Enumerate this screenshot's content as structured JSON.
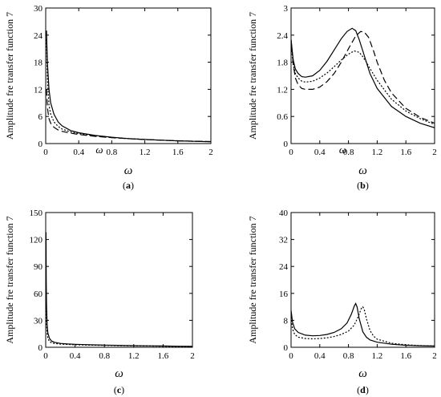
{
  "chart_data": [
    {
      "panel": "a",
      "panel_label": "(a)",
      "type": "line",
      "xlabel": "ω",
      "ylabel": "Amplitude fre transfer function 7",
      "xlim": [
        0,
        2
      ],
      "ylim": [
        0,
        30
      ],
      "xticks": [
        0,
        0.4,
        0.8,
        1.2,
        1.6,
        2
      ],
      "xtick_labels": [
        "0",
        "0.4",
        "0.8",
        "1.2",
        "1.6",
        "2"
      ],
      "yticks": [
        0,
        6,
        12,
        18,
        24,
        30
      ],
      "ytick_labels": [
        "0",
        "6",
        "12",
        "18",
        "24",
        "30"
      ],
      "annotations": [
        {
          "text": "ω",
          "x": 0.65,
          "y": -0.8
        }
      ],
      "series": [
        {
          "style": "solid",
          "x": [
            0.01,
            0.02,
            0.04,
            0.06,
            0.1,
            0.15,
            0.2,
            0.3,
            0.4,
            0.6,
            0.8,
            1.0,
            1.2,
            1.4,
            1.6,
            1.8,
            2.0
          ],
          "y": [
            25,
            18,
            12,
            9,
            6.5,
            4.8,
            3.9,
            2.9,
            2.4,
            1.8,
            1.4,
            1.1,
            0.9,
            0.75,
            0.6,
            0.5,
            0.4
          ]
        },
        {
          "style": "dotted",
          "x": [
            0.01,
            0.02,
            0.04,
            0.06,
            0.1,
            0.15,
            0.2,
            0.3,
            0.4,
            0.6,
            0.8,
            1.0,
            1.2,
            1.4,
            1.6,
            1.8,
            2.0
          ],
          "y": [
            23,
            14,
            8.5,
            6.5,
            4.8,
            3.8,
            3.2,
            2.6,
            2.2,
            1.7,
            1.35,
            1.1,
            0.9,
            0.75,
            0.6,
            0.5,
            0.42
          ]
        },
        {
          "style": "dashed",
          "x": [
            0.01,
            0.02,
            0.04,
            0.06,
            0.1,
            0.15,
            0.2,
            0.3,
            0.4,
            0.6,
            0.8,
            1.0,
            1.2,
            1.4,
            1.6,
            1.8,
            2.0
          ],
          "y": [
            12,
            8,
            5.5,
            4.5,
            3.6,
            3.0,
            2.7,
            2.3,
            2.0,
            1.6,
            1.3,
            1.08,
            0.9,
            0.75,
            0.62,
            0.52,
            0.44
          ]
        }
      ]
    },
    {
      "panel": "b",
      "panel_label": "(b)",
      "type": "line",
      "xlabel": "ω",
      "ylabel": "Amplitude fre transfer function 7",
      "xlim": [
        0,
        2
      ],
      "ylim": [
        0,
        3
      ],
      "xticks": [
        0,
        0.4,
        0.8,
        1.2,
        1.6,
        2
      ],
      "xtick_labels": [
        "0",
        "0.4",
        "0.8",
        "1.2",
        "1.6",
        "2"
      ],
      "yticks": [
        0,
        0.6,
        1.2,
        1.8,
        2.4,
        3
      ],
      "ytick_labels": [
        "0",
        "0.6",
        "1.2",
        "1.8",
        "2.4",
        "3"
      ],
      "annotations": [
        {
          "text": "ω",
          "x": 0.72,
          "y": -0.08
        }
      ],
      "series": [
        {
          "style": "solid",
          "x": [
            0.0,
            0.03,
            0.06,
            0.1,
            0.15,
            0.2,
            0.3,
            0.4,
            0.5,
            0.6,
            0.7,
            0.78,
            0.85,
            0.9,
            0.95,
            1.0,
            1.1,
            1.2,
            1.4,
            1.6,
            1.8,
            2.0
          ],
          "y": [
            2.3,
            1.85,
            1.65,
            1.55,
            1.48,
            1.47,
            1.5,
            1.62,
            1.82,
            2.07,
            2.32,
            2.48,
            2.55,
            2.5,
            2.3,
            2.05,
            1.55,
            1.22,
            0.82,
            0.6,
            0.45,
            0.35
          ]
        },
        {
          "style": "dotted",
          "x": [
            0.0,
            0.03,
            0.06,
            0.1,
            0.15,
            0.2,
            0.3,
            0.4,
            0.5,
            0.6,
            0.7,
            0.8,
            0.88,
            0.95,
            1.0,
            1.05,
            1.1,
            1.2,
            1.4,
            1.6,
            1.8,
            2.0
          ],
          "y": [
            2.2,
            1.75,
            1.55,
            1.45,
            1.38,
            1.36,
            1.38,
            1.45,
            1.56,
            1.7,
            1.85,
            1.98,
            2.05,
            2.02,
            1.92,
            1.8,
            1.66,
            1.4,
            0.98,
            0.72,
            0.55,
            0.42
          ]
        },
        {
          "style": "dashed",
          "x": [
            0.0,
            0.03,
            0.06,
            0.1,
            0.15,
            0.2,
            0.3,
            0.4,
            0.5,
            0.6,
            0.7,
            0.8,
            0.9,
            0.97,
            1.02,
            1.08,
            1.15,
            1.2,
            1.3,
            1.4,
            1.6,
            1.8,
            2.0
          ],
          "y": [
            2.3,
            1.75,
            1.45,
            1.3,
            1.22,
            1.2,
            1.2,
            1.25,
            1.37,
            1.55,
            1.8,
            2.1,
            2.38,
            2.48,
            2.47,
            2.35,
            2.05,
            1.8,
            1.4,
            1.12,
            0.78,
            0.58,
            0.45
          ]
        }
      ]
    },
    {
      "panel": "c",
      "panel_label": "(c)",
      "type": "line",
      "xlabel": "ω",
      "ylabel": "Amplitude fre transfer function 7",
      "xlim": [
        0,
        2
      ],
      "ylim": [
        0,
        150
      ],
      "xticks": [
        0,
        0.4,
        0.8,
        1.2,
        1.6,
        2
      ],
      "xtick_labels": [
        "0",
        "0.4",
        "0.8",
        "1.2",
        "1.6",
        "2"
      ],
      "yticks": [
        0,
        30,
        60,
        90,
        120,
        150
      ],
      "ytick_labels": [
        "0",
        "30",
        "60",
        "90",
        "120",
        "150"
      ],
      "series": [
        {
          "style": "solid",
          "x": [
            0.004,
            0.008,
            0.012,
            0.02,
            0.03,
            0.05,
            0.08,
            0.12,
            0.2,
            0.3,
            0.4,
            0.6,
            0.8,
            1.0,
            1.2,
            1.4,
            1.6,
            1.8,
            2.0
          ],
          "y": [
            128,
            70,
            45,
            25,
            16,
            10,
            7,
            5.5,
            4.3,
            3.7,
            3.3,
            2.8,
            2.4,
            2.1,
            1.8,
            1.6,
            1.4,
            1.2,
            1.0
          ]
        },
        {
          "style": "dotted",
          "x": [
            0.004,
            0.008,
            0.012,
            0.02,
            0.03,
            0.05,
            0.08,
            0.12,
            0.2,
            0.3,
            0.4,
            0.6,
            0.8,
            1.0,
            1.2,
            1.4,
            1.6,
            1.8,
            2.0
          ],
          "y": [
            80,
            40,
            26,
            15,
            10,
            6.5,
            5,
            4.2,
            3.6,
            3.1,
            2.8,
            2.4,
            2.1,
            1.8,
            1.6,
            1.4,
            1.2,
            1.0,
            0.9
          ]
        }
      ]
    },
    {
      "panel": "d",
      "panel_label": "(d)",
      "type": "line",
      "xlabel": "ω",
      "ylabel": "Amplitude fre transfer function 7",
      "xlim": [
        0,
        2
      ],
      "ylim": [
        0,
        40
      ],
      "xticks": [
        0,
        0.4,
        0.8,
        1.2,
        1.6,
        2
      ],
      "xtick_labels": [
        "0",
        "0.4",
        "0.8",
        "1.2",
        "1.6",
        "2"
      ],
      "yticks": [
        0,
        8,
        16,
        24,
        32,
        40
      ],
      "ytick_labels": [
        "0",
        "8",
        "16",
        "24",
        "32",
        "40"
      ],
      "series": [
        {
          "style": "solid",
          "x": [
            0.0,
            0.02,
            0.05,
            0.1,
            0.2,
            0.3,
            0.4,
            0.5,
            0.6,
            0.7,
            0.78,
            0.84,
            0.88,
            0.9,
            0.92,
            0.95,
            1.0,
            1.05,
            1.1,
            1.2,
            1.4,
            1.6,
            1.8,
            2.0
          ],
          "y": [
            11,
            7.5,
            5.5,
            4.4,
            3.6,
            3.4,
            3.5,
            3.8,
            4.4,
            5.5,
            7.2,
            9.8,
            12.2,
            13.0,
            12.0,
            8.5,
            4.6,
            3.0,
            2.2,
            1.5,
            0.9,
            0.6,
            0.45,
            0.35
          ]
        },
        {
          "style": "dotted",
          "x": [
            0.0,
            0.02,
            0.05,
            0.1,
            0.2,
            0.3,
            0.4,
            0.5,
            0.6,
            0.7,
            0.8,
            0.88,
            0.94,
            0.98,
            1.0,
            1.02,
            1.05,
            1.1,
            1.15,
            1.2,
            1.4,
            1.6,
            1.8,
            2.0
          ],
          "y": [
            9,
            5.5,
            3.8,
            3.0,
            2.6,
            2.5,
            2.6,
            2.8,
            3.2,
            3.8,
            4.8,
            6.6,
            9.3,
            11.6,
            12.0,
            11.2,
            8.5,
            5.0,
            3.3,
            2.4,
            1.2,
            0.75,
            0.5,
            0.4
          ]
        }
      ]
    }
  ]
}
